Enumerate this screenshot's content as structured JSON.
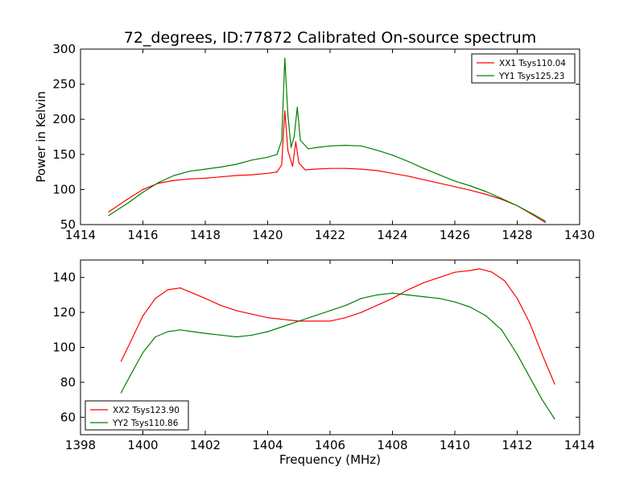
{
  "title": "72_degrees, ID:77872 Calibrated On-source spectrum",
  "colors": {
    "red": "#ff0000",
    "green": "#008000",
    "axis": "#000000",
    "background": "#ffffff"
  },
  "chart_data": [
    {
      "type": "line",
      "title": "72_degrees, ID:77872 Calibrated On-source spectrum",
      "xlabel": "",
      "ylabel": "Power in Kelvin",
      "xlim": [
        1414,
        1430
      ],
      "ylim": [
        50,
        300
      ],
      "xticks": [
        "1414",
        "1416",
        "1418",
        "1420",
        "1422",
        "1424",
        "1426",
        "1428",
        "1430"
      ],
      "yticks": [
        "50",
        "100",
        "150",
        "200",
        "250",
        "300"
      ],
      "grid": false,
      "legend_position": "top-right",
      "series": [
        {
          "name": "XX1 Tsys110.04",
          "color": "#ff0000",
          "x": [
            1414.9,
            1415.5,
            1416.0,
            1416.5,
            1417.0,
            1417.5,
            1418.0,
            1418.5,
            1419.0,
            1419.5,
            1420.0,
            1420.3,
            1420.45,
            1420.55,
            1420.65,
            1420.75,
            1420.8,
            1420.9,
            1421.0,
            1421.2,
            1421.5,
            1422.0,
            1422.5,
            1423.0,
            1423.5,
            1424.0,
            1424.5,
            1425.0,
            1425.5,
            1426.0,
            1426.5,
            1427.0,
            1427.5,
            1428.0,
            1428.5,
            1428.9
          ],
          "y": [
            68,
            86,
            100,
            109,
            113,
            115,
            116,
            118,
            120,
            121,
            123,
            125,
            135,
            212,
            155,
            140,
            133,
            168,
            138,
            128,
            129,
            130,
            130,
            129,
            127,
            123,
            119,
            114,
            109,
            104,
            99,
            93,
            86,
            77,
            64,
            53
          ]
        },
        {
          "name": "YY1 Tsys125.23",
          "color": "#008000",
          "x": [
            1414.9,
            1415.5,
            1416.0,
            1416.5,
            1417.0,
            1417.5,
            1418.0,
            1418.5,
            1419.0,
            1419.5,
            1420.0,
            1420.3,
            1420.45,
            1420.55,
            1420.65,
            1420.75,
            1420.85,
            1420.95,
            1421.05,
            1421.3,
            1421.6,
            1422.0,
            1422.5,
            1423.0,
            1423.5,
            1424.0,
            1424.5,
            1425.0,
            1425.5,
            1426.0,
            1426.5,
            1427.0,
            1427.5,
            1428.0,
            1428.5,
            1428.9
          ],
          "y": [
            63,
            80,
            96,
            110,
            120,
            126,
            129,
            132,
            136,
            142,
            146,
            150,
            170,
            287,
            205,
            160,
            175,
            217,
            170,
            158,
            160,
            162,
            163,
            162,
            156,
            149,
            140,
            130,
            121,
            112,
            105,
            97,
            87,
            77,
            65,
            55
          ]
        }
      ]
    },
    {
      "type": "line",
      "title": "",
      "xlabel": "Frequency (MHz)",
      "ylabel": "",
      "xlim": [
        1398,
        1414
      ],
      "ylim": [
        50,
        150
      ],
      "xticks": [
        "1398",
        "1400",
        "1402",
        "1404",
        "1406",
        "1408",
        "1410",
        "1412",
        "1414"
      ],
      "yticks": [
        "60",
        "80",
        "100",
        "120",
        "140"
      ],
      "grid": false,
      "legend_position": "bottom-left",
      "series": [
        {
          "name": "XX2 Tsys123.90",
          "color": "#ff0000",
          "x": [
            1399.3,
            1399.6,
            1400.0,
            1400.4,
            1400.8,
            1401.2,
            1401.6,
            1402.0,
            1402.5,
            1403.0,
            1403.5,
            1404.0,
            1404.5,
            1405.0,
            1405.5,
            1406.0,
            1406.5,
            1407.0,
            1407.5,
            1408.0,
            1408.5,
            1409.0,
            1409.5,
            1410.0,
            1410.5,
            1410.8,
            1411.2,
            1411.6,
            1412.0,
            1412.4,
            1412.8,
            1413.2
          ],
          "y": [
            92,
            103,
            118,
            128,
            133,
            134,
            131,
            128,
            124,
            121,
            119,
            117,
            116,
            115,
            115,
            115,
            117,
            120,
            124,
            128,
            133,
            137,
            140,
            143,
            144,
            145,
            143,
            138,
            128,
            114,
            96,
            79
          ]
        },
        {
          "name": "YY2 Tsys110.86",
          "color": "#008000",
          "x": [
            1399.3,
            1399.6,
            1400.0,
            1400.4,
            1400.8,
            1401.2,
            1401.6,
            1402.0,
            1402.5,
            1403.0,
            1403.5,
            1404.0,
            1404.5,
            1405.0,
            1405.5,
            1406.0,
            1406.5,
            1407.0,
            1407.5,
            1408.0,
            1408.5,
            1409.0,
            1409.5,
            1410.0,
            1410.5,
            1411.0,
            1411.5,
            1412.0,
            1412.4,
            1412.8,
            1413.2
          ],
          "y": [
            74,
            84,
            97,
            106,
            109,
            110,
            109,
            108,
            107,
            106,
            107,
            109,
            112,
            115,
            118,
            121,
            124,
            128,
            130,
            131,
            130,
            129,
            128,
            126,
            123,
            118,
            110,
            96,
            83,
            70,
            59
          ]
        }
      ]
    }
  ]
}
